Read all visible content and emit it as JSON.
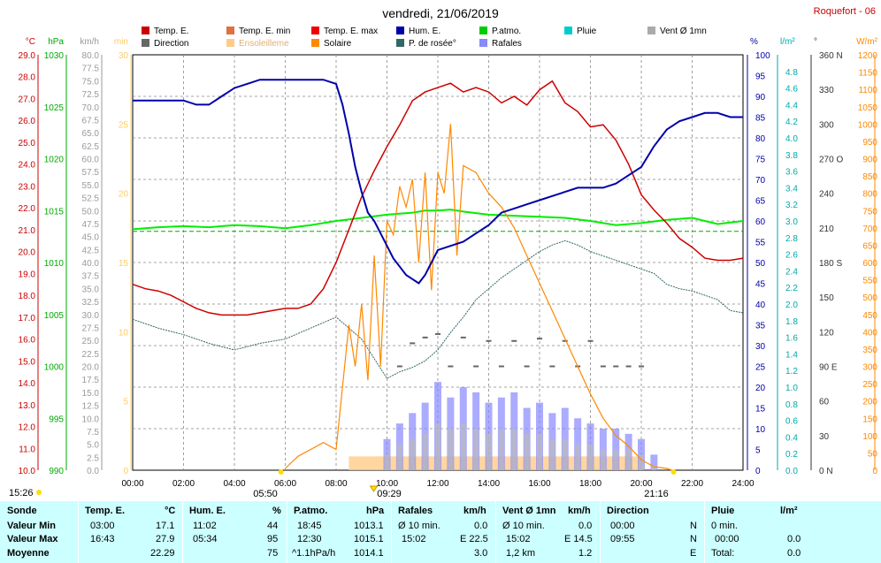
{
  "chart_data": {
    "type": "line",
    "title": "vendredi, 21/06/2019",
    "station": "Roquefort - 06",
    "x_ticks": [
      "00:00",
      "02:00",
      "04:00",
      "06:00",
      "08:00",
      "10:00",
      "12:00",
      "14:00",
      "16:00",
      "18:00",
      "20:00",
      "22:00",
      "24:00"
    ],
    "xlim_hours": [
      0,
      24
    ],
    "legend": [
      {
        "label": "Temp. E.",
        "color": "#cc0000"
      },
      {
        "label": "Temp. E. min",
        "color": "#e07040"
      },
      {
        "label": "Temp. E. max",
        "color": "#ee0000"
      },
      {
        "label": "Hum. E.",
        "color": "#0000aa"
      },
      {
        "label": "P.atmo.",
        "color": "#00cc00"
      },
      {
        "label": "Pluie",
        "color": "#00cccc"
      },
      {
        "label": "Vent Ø 1mn",
        "color": "#aaaaaa"
      },
      {
        "label": "Direction",
        "color": "#666666"
      },
      {
        "label": "Ensoleilleme",
        "color": "#ffcc88"
      },
      {
        "label": "Solaire",
        "color": "#ff8800"
      },
      {
        "label": "P. de rosée°",
        "color": "#336666"
      },
      {
        "label": "Rafales",
        "color": "#8888ff"
      }
    ],
    "axes": [
      {
        "unit": "°C",
        "color": "#cc0000",
        "min": 10,
        "max": 29,
        "ticks": [
          "29.0",
          "28.0",
          "27.0",
          "26.0",
          "25.0",
          "24.0",
          "23.0",
          "22.0",
          "21.0",
          "20.0",
          "19.0",
          "18.0",
          "17.0",
          "16.0",
          "15.0",
          "14.0",
          "13.0",
          "12.0",
          "11.0",
          "10.0"
        ]
      },
      {
        "unit": "hPa",
        "color": "#00aa00",
        "min": 990,
        "max": 1030,
        "ticks": [
          "1030",
          "1025",
          "1020",
          "1015",
          "1010",
          "1005",
          "1000",
          "995",
          "990"
        ]
      },
      {
        "unit": "km/h",
        "color": "#999999",
        "min": 0,
        "max": 80,
        "ticks": [
          "80.0",
          "77.5",
          "75.0",
          "72.5",
          "70.0",
          "67.5",
          "65.0",
          "62.5",
          "60.0",
          "57.5",
          "55.0",
          "52.5",
          "50.0",
          "47.5",
          "45.0",
          "42.5",
          "40.0",
          "37.5",
          "35.0",
          "32.5",
          "30.0",
          "27.5",
          "25.0",
          "22.5",
          "20.0",
          "17.5",
          "15.0",
          "12.5",
          "10.0",
          "7.5",
          "5.0",
          "2.5",
          "0.0"
        ]
      },
      {
        "unit": "min",
        "color": "#ffcc66",
        "min": 0,
        "max": 30,
        "ticks": [
          "30",
          "25",
          "20",
          "15",
          "10",
          "5",
          "0"
        ]
      },
      {
        "unit": "%",
        "color": "#0000aa",
        "min": 0,
        "max": 100,
        "ticks": [
          "100",
          "95",
          "90",
          "85",
          "80",
          "75",
          "70",
          "65",
          "60",
          "55",
          "50",
          "45",
          "40",
          "35",
          "30",
          "25",
          "20",
          "15",
          "10",
          "5",
          "0"
        ]
      },
      {
        "unit": "l/m²",
        "color": "#00aaaa",
        "min": 0,
        "max": 5,
        "ticks": [
          "4.8",
          "4.6",
          "4.4",
          "4.2",
          "4.0",
          "3.8",
          "3.6",
          "3.4",
          "3.2",
          "3.0",
          "2.8",
          "2.6",
          "2.4",
          "2.2",
          "2.0",
          "1.8",
          "1.6",
          "1.4",
          "1.2",
          "1.0",
          "0.8",
          "0.6",
          "0.4",
          "0.2",
          "0.0"
        ]
      },
      {
        "unit": "°",
        "color": "#333333",
        "min": 0,
        "max": 360,
        "ticks": [
          "360 N",
          "330",
          "300",
          "270 O",
          "240",
          "210",
          "180 S",
          "150",
          "120",
          "90 E",
          "60",
          "30",
          "0 N"
        ]
      },
      {
        "unit": "W/m²",
        "color": "#ff8800",
        "min": 0,
        "max": 1200,
        "ticks": [
          "1200",
          "1150",
          "1100",
          "1050",
          "1000",
          "950",
          "900",
          "850",
          "800",
          "750",
          "700",
          "650",
          "600",
          "550",
          "500",
          "450",
          "400",
          "350",
          "300",
          "250",
          "200",
          "150",
          "100",
          "50",
          "0"
        ]
      }
    ],
    "series": [
      {
        "name": "Temp. E.",
        "unit": "°C",
        "x": [
          0,
          0.5,
          1,
          1.5,
          2,
          2.5,
          3,
          3.5,
          4,
          4.5,
          5,
          5.5,
          6,
          6.5,
          7,
          7.5,
          8,
          8.5,
          9,
          9.5,
          10,
          10.5,
          11,
          11.5,
          12,
          12.5,
          13,
          13.5,
          14,
          14.5,
          15,
          15.5,
          16,
          16.5,
          17,
          17.5,
          18,
          18.5,
          19,
          19.5,
          20,
          20.5,
          21,
          21.5,
          22,
          22.5,
          23,
          23.5,
          24
        ],
        "y": [
          18.5,
          18.3,
          18.2,
          18.0,
          17.7,
          17.4,
          17.2,
          17.1,
          17.1,
          17.1,
          17.2,
          17.3,
          17.4,
          17.4,
          17.6,
          18.3,
          19.5,
          21.0,
          22.5,
          23.7,
          24.8,
          25.8,
          26.9,
          27.3,
          27.5,
          27.7,
          27.3,
          27.5,
          27.3,
          26.8,
          27.1,
          26.7,
          27.4,
          27.8,
          26.8,
          26.4,
          25.7,
          25.8,
          25.1,
          24.0,
          22.6,
          21.9,
          21.3,
          20.6,
          20.2,
          19.7,
          19.6,
          19.6,
          19.7
        ]
      },
      {
        "name": "Hum. E.",
        "unit": "%",
        "x": [
          0,
          0.5,
          1,
          1.5,
          2,
          2.5,
          3,
          3.5,
          4,
          4.5,
          5,
          5.5,
          6,
          6.5,
          7,
          7.5,
          8,
          8.25,
          8.5,
          8.75,
          9,
          9.25,
          9.5,
          9.75,
          10,
          10.25,
          10.5,
          10.75,
          11,
          11.25,
          11.5,
          11.75,
          12,
          12.5,
          13,
          13.5,
          14,
          14.5,
          15,
          15.5,
          16,
          16.5,
          17,
          17.5,
          18,
          18.5,
          19,
          19.5,
          20,
          20.5,
          21,
          21.5,
          22,
          22.5,
          23,
          23.5,
          24
        ],
        "y": [
          89,
          89,
          89,
          89,
          89,
          88,
          88,
          90,
          92,
          93,
          94,
          94,
          94,
          94,
          94,
          94,
          93,
          88,
          81,
          73,
          67,
          62,
          60,
          57,
          54,
          51,
          49,
          47,
          46,
          45,
          47,
          50,
          53,
          54,
          55,
          57,
          59,
          62,
          63,
          64,
          65,
          66,
          67,
          68,
          68,
          68,
          69,
          71,
          73,
          78,
          82,
          84,
          85,
          86,
          86,
          85,
          85
        ]
      },
      {
        "name": "P.atmo.",
        "unit": "hPa",
        "x": [
          0,
          1,
          2,
          3,
          4,
          5,
          6,
          7,
          8,
          9,
          10,
          11,
          11.5,
          12,
          12.5,
          13,
          14,
          15,
          16,
          17,
          18,
          19,
          20,
          21,
          22,
          23,
          24
        ],
        "y": [
          1013.2,
          1013.4,
          1013.5,
          1013.4,
          1013.6,
          1013.5,
          1013.3,
          1013.6,
          1014.0,
          1014.3,
          1014.6,
          1014.8,
          1015.0,
          1015.0,
          1015.1,
          1014.9,
          1014.6,
          1014.5,
          1014.4,
          1014.3,
          1014.0,
          1013.6,
          1013.8,
          1014.1,
          1014.3,
          1013.7,
          1014.0
        ]
      },
      {
        "name": "P.atmo. ref",
        "unit": "hPa",
        "x": [
          0,
          24
        ],
        "y": [
          1013.0,
          1013.0
        ]
      },
      {
        "name": "P. de rosée°",
        "unit": "°C",
        "x": [
          0,
          1,
          2,
          3,
          4,
          5,
          6,
          7,
          8,
          9,
          10,
          10.5,
          11,
          11.5,
          12,
          12.5,
          13,
          13.5,
          14,
          14.5,
          15,
          15.5,
          16,
          16.5,
          17,
          17.5,
          18,
          18.5,
          19,
          19.5,
          20,
          20.5,
          21,
          21.5,
          22,
          22.5,
          23,
          23.5,
          24
        ],
        "y": [
          16.9,
          16.5,
          16.2,
          15.8,
          15.5,
          15.8,
          16.0,
          16.5,
          17.0,
          16.0,
          14.2,
          14.5,
          14.7,
          15.0,
          15.5,
          16.3,
          17.0,
          17.8,
          18.3,
          18.8,
          19.2,
          19.6,
          20.0,
          20.3,
          20.5,
          20.3,
          20.0,
          19.8,
          19.6,
          19.4,
          19.2,
          19.0,
          18.5,
          18.3,
          18.2,
          18.0,
          17.8,
          17.3,
          17.2
        ]
      },
      {
        "name": "Solaire",
        "unit": "W/m²",
        "x": [
          6,
          6.5,
          7,
          7.5,
          8,
          8.25,
          8.5,
          8.75,
          9,
          9.25,
          9.5,
          9.75,
          10,
          10.25,
          10.5,
          10.75,
          11,
          11.25,
          11.5,
          11.75,
          12,
          12.25,
          12.5,
          12.75,
          13,
          13.5,
          14,
          14.5,
          15,
          15.5,
          16,
          16.5,
          17,
          17.5,
          18,
          18.5,
          19,
          19.5,
          20,
          20.5,
          21,
          21.2
        ],
        "y": [
          5,
          40,
          60,
          80,
          60,
          240,
          420,
          300,
          480,
          260,
          620,
          300,
          720,
          680,
          820,
          760,
          840,
          600,
          860,
          520,
          860,
          800,
          1000,
          620,
          880,
          860,
          800,
          760,
          700,
          620,
          540,
          460,
          380,
          300,
          220,
          150,
          100,
          70,
          30,
          10,
          5,
          0
        ]
      },
      {
        "name": "Rafales",
        "unit": "km/h",
        "x": [
          10,
          10.5,
          11,
          11.5,
          12,
          12.5,
          13,
          13.5,
          14,
          14.5,
          15,
          15.5,
          16,
          16.5,
          17,
          17.5,
          18,
          18.5,
          19,
          19.5,
          20,
          20.5
        ],
        "y": [
          6,
          9,
          11,
          13,
          17,
          14,
          16,
          15,
          13,
          14,
          15,
          12,
          13,
          11,
          12,
          10,
          9,
          8,
          8,
          7,
          6,
          3
        ]
      },
      {
        "name": "Vent Ø 1mn",
        "unit": "km/h",
        "x": [
          10,
          10.5,
          11,
          11.5,
          12,
          12.5,
          13,
          13.5,
          14,
          14.5,
          15,
          15.5,
          16,
          16.5,
          17,
          17.5,
          18,
          18.5,
          19,
          19.5,
          20,
          20.5
        ],
        "y": [
          3,
          5,
          6,
          7,
          9,
          8,
          9,
          8,
          7,
          8,
          8,
          7,
          7,
          6,
          6,
          5,
          5,
          4,
          4,
          4,
          3,
          1
        ]
      },
      {
        "name": "Direction",
        "unit": "°",
        "x": [
          10.5,
          11,
          11.5,
          12,
          12.5,
          13,
          13.5,
          14,
          14.5,
          15,
          15.5,
          16,
          16.5,
          17,
          17.5,
          18,
          18.5,
          19,
          19.5,
          20
        ],
        "y": [
          90,
          110,
          115,
          118,
          90,
          115,
          90,
          112,
          90,
          112,
          90,
          114,
          90,
          112,
          90,
          112,
          90,
          90,
          90,
          90
        ]
      }
    ],
    "sun_markers": {
      "sunrise": "05:50",
      "solar_noon": "09:29",
      "sunset": "21:16",
      "left_time": "15:26"
    }
  },
  "table": {
    "headers": [
      "Sonde",
      "Temp. E.",
      "°C",
      "Hum. E.",
      "%",
      "P.atmo.",
      "hPa",
      "Rafales",
      "km/h",
      "Vent Ø 1mn",
      "km/h",
      "Direction",
      "Pluie",
      "l/m²"
    ],
    "rows": [
      {
        "label": "Valeur Min",
        "temp_time": "03:00",
        "temp_val": "17.1",
        "hum_time": "11:02",
        "hum_val": "44",
        "patm_time": "18:45",
        "patm_val": "1013.1",
        "raf_time": "Ø 10 min.",
        "raf_val": "0.0",
        "vent_time": "Ø 10 min.",
        "vent_val": "0.0",
        "dir_time": "00:00",
        "dir_val": "N",
        "pluie_time": "0 min.",
        "pluie_val": ""
      },
      {
        "label": "Valeur Max",
        "temp_time": "16:43",
        "temp_val": "27.9",
        "hum_time": "05:34",
        "hum_val": "95",
        "patm_time": "12:30",
        "patm_val": "1015.1",
        "raf_time": "15:02",
        "raf_val": "E 22.5",
        "vent_time": "15:02",
        "vent_val": "E 14.5",
        "dir_time": "09:55",
        "dir_val": "N",
        "pluie_time": "00:00",
        "pluie_val": "0.0"
      },
      {
        "label": "Moyenne",
        "temp_time": "",
        "temp_val": "22.29",
        "hum_time": "",
        "hum_val": "75",
        "patm_time": "^1.1hPa/h",
        "patm_val": "1014.1",
        "raf_time": "",
        "raf_val": "3.0",
        "vent_time": "1,2 km",
        "vent_val": "1.2",
        "dir_time": "",
        "dir_val": "E",
        "pluie_time": "Total:",
        "pluie_val": "0.0"
      }
    ]
  }
}
